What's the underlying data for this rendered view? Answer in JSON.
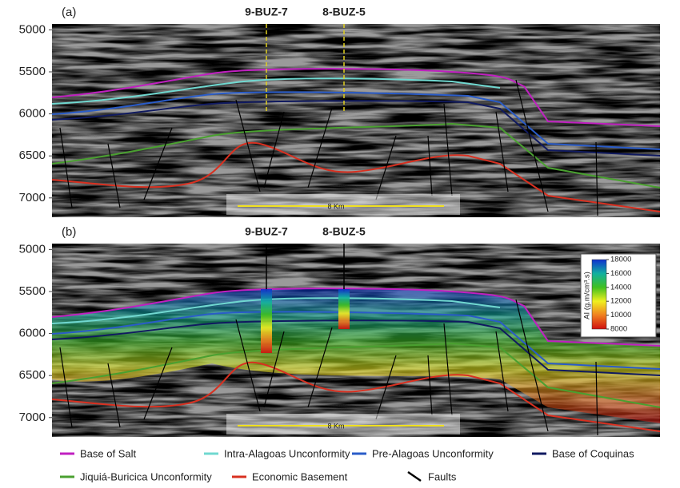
{
  "depth_axis": {
    "ylim": [
      4930,
      7230
    ],
    "ticks": [
      5000,
      5500,
      6000,
      6500,
      7000
    ]
  },
  "panels": [
    {
      "label": "(a)",
      "wells": [
        {
          "name": "9-BUZ-7"
        },
        {
          "name": "8-BUZ-5"
        }
      ],
      "scale_bar": "8 Km"
    },
    {
      "label": "(b)",
      "wells": [
        {
          "name": "9-BUZ-7"
        },
        {
          "name": "8-BUZ-5"
        }
      ],
      "scale_bar": "8 Km"
    }
  ],
  "colorbar": {
    "label": "AI (g.m/cm³.s)",
    "range": [
      8000,
      18000
    ],
    "ticks": [
      8000,
      10000,
      12000,
      14000,
      16000,
      18000
    ]
  },
  "legend": [
    {
      "name": "Base of Salt",
      "color": "#c020c0"
    },
    {
      "name": "Intra-Alagoas Unconformity",
      "color": "#70d8d0"
    },
    {
      "name": "Pre-Alagoas Unconformity",
      "color": "#2a5cc8"
    },
    {
      "name": "Base of Coquinas",
      "color": "#101a60"
    },
    {
      "name": "Jiquiá-Buricica Unconformity",
      "color": "#4aa030"
    },
    {
      "name": "Economic Basement",
      "color": "#d83020"
    },
    {
      "name": "Faults",
      "color": "#000000"
    }
  ]
}
